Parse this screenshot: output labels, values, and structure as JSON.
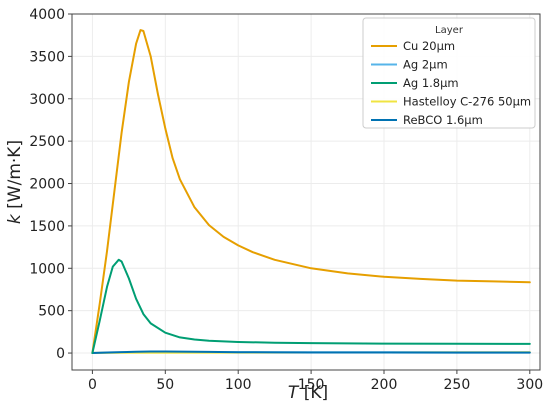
{
  "chart_data": {
    "type": "line",
    "title": "",
    "xlabel_italic": "T",
    "xlabel_unit": "[K]",
    "ylabel_italic": "k",
    "ylabel_unit": "[W/m·K]",
    "xlim": [
      -14,
      307
    ],
    "ylim": [
      -200,
      4000
    ],
    "xticks": [
      0,
      50,
      100,
      150,
      200,
      250,
      300
    ],
    "yticks": [
      0,
      500,
      1000,
      1500,
      2000,
      2500,
      3000,
      3500,
      4000
    ],
    "grid": true,
    "legend": {
      "title": "Layer",
      "placement": "top-right"
    },
    "series": [
      {
        "name": "Cu 20µm",
        "color": "#E69F00",
        "x": [
          0,
          5,
          10,
          15,
          20,
          25,
          30,
          33,
          35,
          40,
          45,
          50,
          55,
          60,
          70,
          80,
          90,
          100,
          110,
          125,
          150,
          175,
          200,
          225,
          250,
          275,
          300
        ],
        "y": [
          0,
          580,
          1200,
          1900,
          2600,
          3200,
          3650,
          3810,
          3800,
          3500,
          3050,
          2650,
          2300,
          2050,
          1720,
          1510,
          1370,
          1270,
          1190,
          1100,
          1000,
          940,
          900,
          875,
          855,
          845,
          835
        ]
      },
      {
        "name": "Ag 2µm",
        "color": "#56B4E9",
        "x": [
          0,
          10,
          20,
          30,
          50,
          75,
          100,
          150,
          200,
          250,
          300
        ],
        "y": [
          0,
          3,
          6,
          8,
          10,
          10,
          10,
          10,
          10,
          10,
          10
        ]
      },
      {
        "name": "Ag 1.8µm",
        "color": "#009E73",
        "x": [
          0,
          5,
          10,
          14,
          18,
          20,
          25,
          30,
          35,
          40,
          50,
          60,
          70,
          80,
          100,
          125,
          150,
          200,
          250,
          300
        ],
        "y": [
          0,
          380,
          780,
          1020,
          1100,
          1080,
          880,
          640,
          460,
          350,
          240,
          185,
          160,
          145,
          130,
          122,
          117,
          112,
          110,
          108
        ]
      },
      {
        "name": "Hastelloy C-276 50µm",
        "color": "#F0E442",
        "x": [
          0,
          50,
          100,
          150,
          200,
          250,
          300
        ],
        "y": [
          2,
          4,
          5,
          6,
          7,
          8,
          9
        ]
      },
      {
        "name": "ReBCO 1.6µm",
        "color": "#0072B2",
        "x": [
          0,
          10,
          20,
          30,
          40,
          50,
          60,
          70,
          80,
          100,
          125,
          150,
          200,
          250,
          300
        ],
        "y": [
          0,
          6,
          11,
          15,
          18,
          18,
          17,
          15,
          13,
          10,
          8,
          7,
          6,
          5,
          5
        ]
      }
    ]
  }
}
